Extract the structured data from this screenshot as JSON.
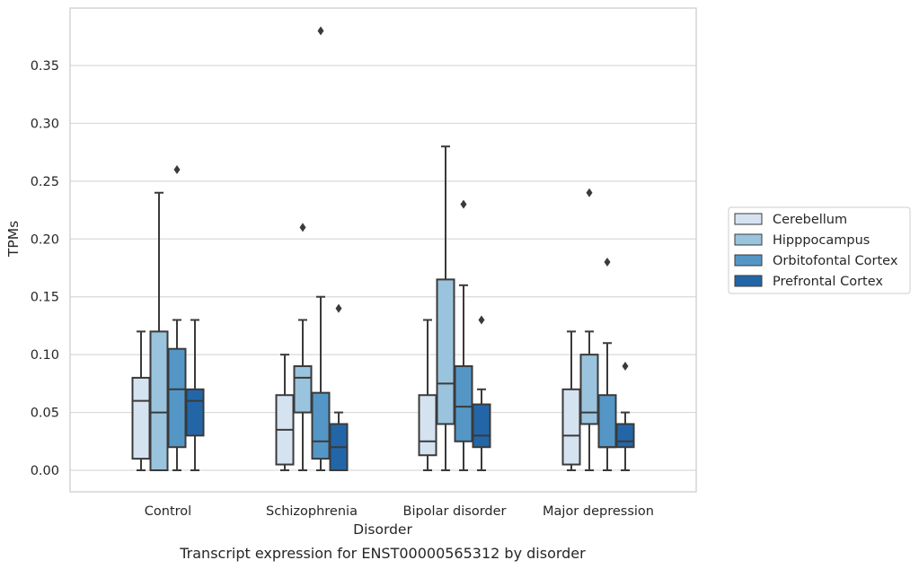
{
  "chart_data": {
    "type": "box",
    "title": "",
    "caption": "Transcript expression for ENST00000565312 by disorder",
    "xlabel": "Disorder",
    "ylabel": "TPMs",
    "ylim": [
      -0.018,
      0.398
    ],
    "yticks": [
      "0.00",
      "0.05",
      "0.10",
      "0.15",
      "0.20",
      "0.25",
      "0.30",
      "0.35"
    ],
    "grid": true,
    "legend_position": "right",
    "categories": [
      "Control",
      "Schizophrenia",
      "Bipolar disorder",
      "Major depression"
    ],
    "series": [
      {
        "name": "Cerebellum",
        "color": "#d5e3f1",
        "boxes": [
          {
            "whislo": 0.0,
            "q1": 0.01,
            "med": 0.06,
            "q3": 0.08,
            "whishi": 0.12,
            "fliers": []
          },
          {
            "whislo": 0.0,
            "q1": 0.005,
            "med": 0.035,
            "q3": 0.065,
            "whishi": 0.1,
            "fliers": []
          },
          {
            "whislo": 0.0,
            "q1": 0.013,
            "med": 0.025,
            "q3": 0.065,
            "whishi": 0.13,
            "fliers": []
          },
          {
            "whislo": 0.0,
            "q1": 0.005,
            "med": 0.03,
            "q3": 0.07,
            "whishi": 0.12,
            "fliers": []
          }
        ]
      },
      {
        "name": "Hipppocampus",
        "color": "#9ac4de",
        "boxes": [
          {
            "whislo": 0.0,
            "q1": 0.0,
            "med": 0.05,
            "q3": 0.12,
            "whishi": 0.24,
            "fliers": []
          },
          {
            "whislo": 0.0,
            "q1": 0.05,
            "med": 0.08,
            "q3": 0.09,
            "whishi": 0.13,
            "fliers": [
              0.21
            ]
          },
          {
            "whislo": 0.0,
            "q1": 0.04,
            "med": 0.075,
            "q3": 0.165,
            "whishi": 0.28,
            "fliers": []
          },
          {
            "whislo": 0.0,
            "q1": 0.04,
            "med": 0.05,
            "q3": 0.1,
            "whishi": 0.12,
            "fliers": [
              0.24
            ]
          }
        ]
      },
      {
        "name": "Orbitofontal Cortex",
        "color": "#5497c6",
        "boxes": [
          {
            "whislo": 0.0,
            "q1": 0.02,
            "med": 0.07,
            "q3": 0.105,
            "whishi": 0.13,
            "fliers": [
              0.26
            ]
          },
          {
            "whislo": 0.0,
            "q1": 0.01,
            "med": 0.025,
            "q3": 0.067,
            "whishi": 0.15,
            "fliers": [
              0.38
            ]
          },
          {
            "whislo": 0.0,
            "q1": 0.025,
            "med": 0.055,
            "q3": 0.09,
            "whishi": 0.16,
            "fliers": [
              0.23
            ]
          },
          {
            "whislo": 0.0,
            "q1": 0.02,
            "med": 0.02,
            "q3": 0.065,
            "whishi": 0.11,
            "fliers": [
              0.18
            ]
          }
        ]
      },
      {
        "name": "Prefrontal Cortex",
        "color": "#2366a8",
        "boxes": [
          {
            "whislo": 0.0,
            "q1": 0.03,
            "med": 0.06,
            "q3": 0.07,
            "whishi": 0.13,
            "fliers": []
          },
          {
            "whislo": 0.0,
            "q1": 0.0,
            "med": 0.02,
            "q3": 0.04,
            "whishi": 0.05,
            "fliers": [
              0.14
            ]
          },
          {
            "whislo": 0.0,
            "q1": 0.02,
            "med": 0.03,
            "q3": 0.057,
            "whishi": 0.07,
            "fliers": [
              0.13
            ]
          },
          {
            "whislo": 0.0,
            "q1": 0.02,
            "med": 0.025,
            "q3": 0.04,
            "whishi": 0.05,
            "fliers": [
              0.09
            ]
          }
        ]
      }
    ]
  }
}
